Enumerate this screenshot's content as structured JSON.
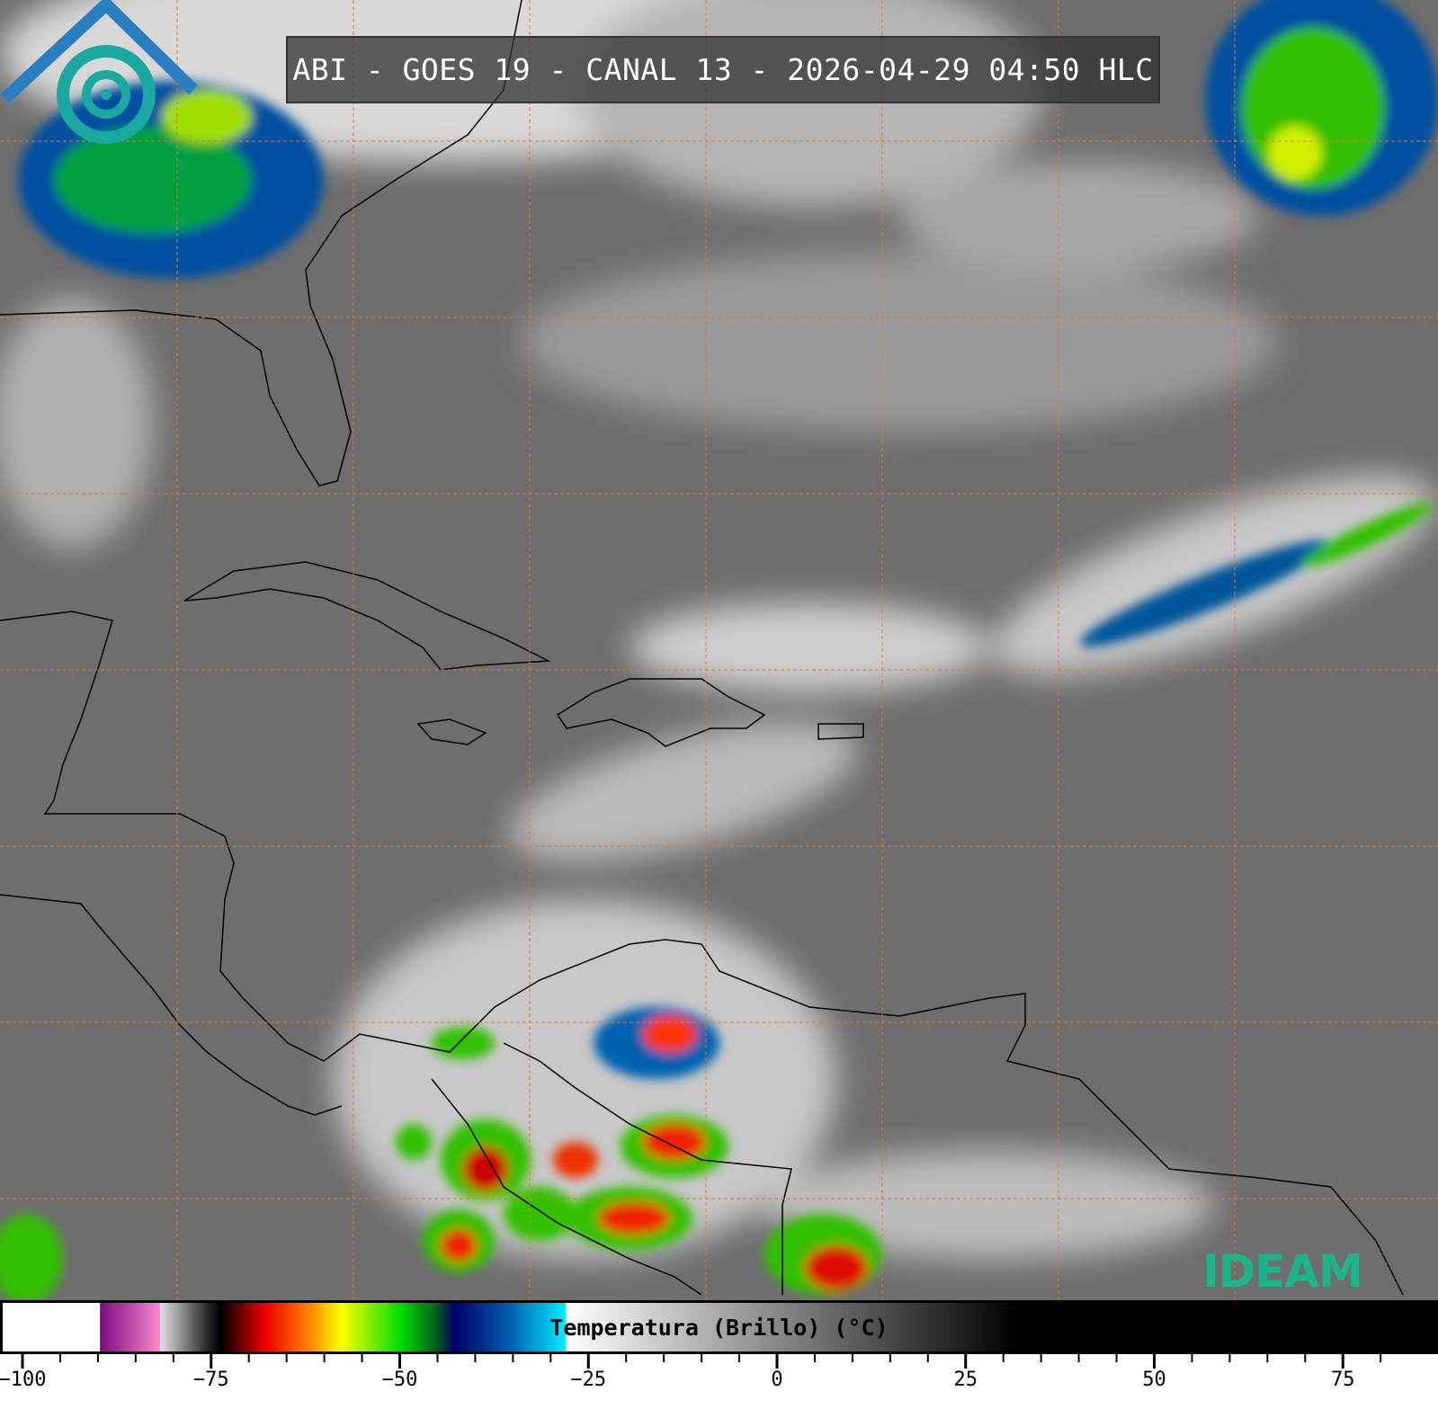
{
  "title": "ABI - GOES 19 - CANAL 13 - 2026-04-29 04:50 HLC",
  "colorbar": {
    "label": "Temperatura (Brillo) (°C)",
    "range": [
      -103,
      83
    ],
    "major_ticks": [
      -100,
      -75,
      -50,
      -25,
      0,
      25,
      50,
      75
    ],
    "tick_labels": [
      "−100",
      "−75",
      "−50",
      "−25",
      "0",
      "25",
      "50",
      "75"
    ],
    "minor_tick_step": 5,
    "stops": [
      {
        "t": -103,
        "c": "#ffffff"
      },
      {
        "t": -90.1,
        "c": "#ffffff"
      },
      {
        "t": -90,
        "c": "#7a0a80"
      },
      {
        "t": -82.1,
        "c": "#ff88cc"
      },
      {
        "t": -82,
        "c": "#e0e0e0"
      },
      {
        "t": -75.5,
        "c": "#222222"
      },
      {
        "t": -74,
        "c": "#000000"
      },
      {
        "t": -68,
        "c": "#ee0000"
      },
      {
        "t": -62,
        "c": "#ff8800"
      },
      {
        "t": -58,
        "c": "#ffff00"
      },
      {
        "t": -50,
        "c": "#00dd00"
      },
      {
        "t": -45,
        "c": "#005522"
      },
      {
        "t": -43,
        "c": "#000066"
      },
      {
        "t": -36,
        "c": "#0055aa"
      },
      {
        "t": -28.1,
        "c": "#00eeff"
      },
      {
        "t": -28,
        "c": "#ffffff"
      },
      {
        "t": 32,
        "c": "#000000"
      },
      {
        "t": 83,
        "c": "#000000"
      }
    ]
  },
  "logo": {
    "text": "IDEAM",
    "color": "#1db588"
  },
  "colors": {
    "grid": "#e07a2a",
    "background": "#6e6e6e"
  }
}
